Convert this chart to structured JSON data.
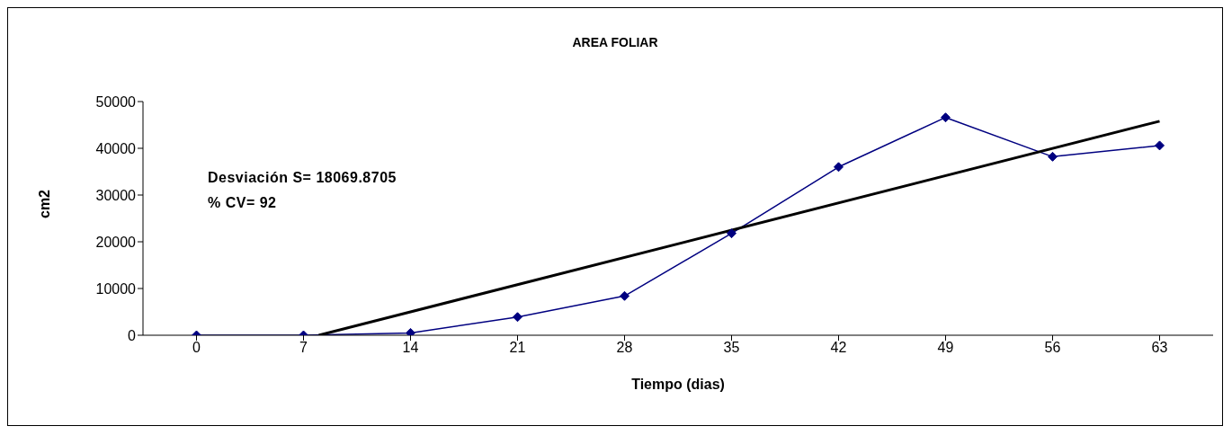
{
  "chart_data": {
    "type": "line",
    "title": "AREA FOLIAR",
    "xlabel": "Tiempo (dias)",
    "ylabel": "cm2",
    "x": [
      0,
      7,
      14,
      21,
      28,
      35,
      42,
      49,
      56,
      63
    ],
    "xlim": [
      -3.5,
      66.5
    ],
    "xticks": [
      0,
      7,
      14,
      21,
      28,
      35,
      42,
      49,
      56,
      63
    ],
    "ylim": [
      0,
      50000
    ],
    "yticks": [
      0,
      10000,
      20000,
      30000,
      40000,
      50000
    ],
    "grid": false,
    "legend": false,
    "annotations": [
      "Desviación S=  18069.8705",
      "% CV= 92"
    ],
    "series": [
      {
        "color": "#000080",
        "marker": "diamond",
        "values": [
          0,
          0,
          500,
          3900,
          8400,
          21800,
          36000,
          46600,
          38200,
          40600
        ]
      },
      {
        "color": "#000000",
        "marker": "none",
        "x": [
          8,
          63
        ],
        "values": [
          0,
          45800
        ]
      }
    ]
  }
}
